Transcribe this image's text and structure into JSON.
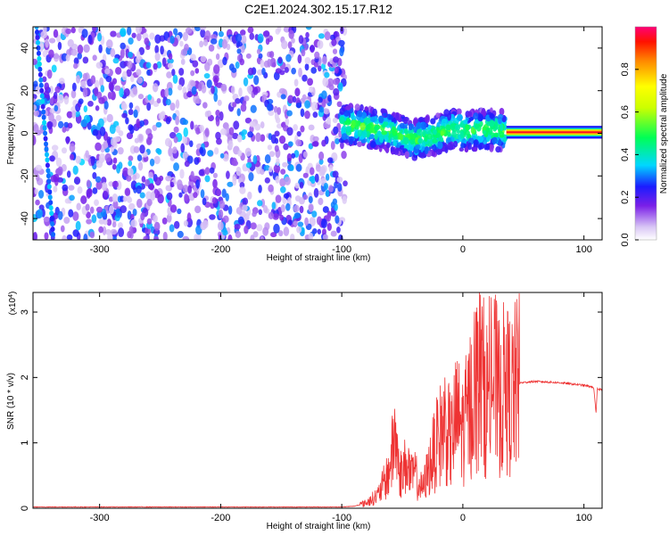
{
  "title": "C2E1.2024.302.15.17.R12",
  "chart_data": [
    {
      "type": "heatmap",
      "xlabel": "Height of straight line (km)",
      "ylabel": "Frequency (Hz)",
      "xlim": [
        -355,
        115
      ],
      "ylim": [
        -50,
        50
      ],
      "x_ticks": [
        -300,
        -200,
        -100,
        0,
        100
      ],
      "y_ticks": [
        -40,
        -20,
        0,
        20,
        40
      ],
      "colorbar": {
        "label": "Normalized spectral amplitude",
        "range": [
          0,
          1
        ],
        "ticks": [
          0.0,
          0.2,
          0.4,
          0.6,
          0.8
        ],
        "tick_labels": [
          "0.0",
          "0.2",
          "0.4",
          "0.6",
          "0.8"
        ]
      },
      "regions": [
        {
          "x_range": [
            -355,
            -97
          ],
          "description_values": {
            "freq_span": [
              -50,
              50
            ],
            "amplitude_typical": [
              0.05,
              0.3
            ]
          }
        },
        {
          "x_range": [
            -100,
            35
          ],
          "description_values": {
            "freq_span": [
              -10,
              12
            ],
            "amplitude_typical": [
              0.15,
              0.55
            ]
          }
        },
        {
          "x_range": [
            36,
            115
          ],
          "description_values": {
            "freq_center": 0.5,
            "amplitude_peak": 0.95
          }
        }
      ],
      "ridge": [
        {
          "x": -95,
          "y": 4
        },
        {
          "x": -80,
          "y": 3
        },
        {
          "x": -60,
          "y": 1
        },
        {
          "x": -40,
          "y": -3
        },
        {
          "x": -25,
          "y": -1
        },
        {
          "x": -10,
          "y": 2
        },
        {
          "x": 5,
          "y": 1
        },
        {
          "x": 20,
          "y": 2
        },
        {
          "x": 35,
          "y": 1
        }
      ]
    },
    {
      "type": "line",
      "xlabel": "Height of straight line (km)",
      "ylabel": "SNR (10 * v/v)",
      "y_multiplier": "(x10",
      "y_multiplier_exp": "4",
      "y_multiplier_close": ")",
      "xlim": [
        -355,
        115
      ],
      "ylim": [
        0,
        3.3
      ],
      "x_ticks": [
        -300,
        -200,
        -100,
        0,
        100
      ],
      "y_ticks": [
        0,
        1,
        2,
        3
      ],
      "color": "#ee3333",
      "series": [
        {
          "points": [
            [
              -355,
              0.02
            ],
            [
              -300,
              0.02
            ],
            [
              -200,
              0.02
            ],
            [
              -100,
              0.02
            ],
            [
              -90,
              0.03
            ],
            [
              -80,
              0.08
            ],
            [
              -70,
              0.2
            ],
            [
              -62,
              0.5
            ],
            [
              -58,
              0.85
            ],
            [
              -56,
              1.2
            ],
            [
              -53,
              0.6
            ],
            [
              -50,
              0.5
            ],
            [
              -46,
              0.75
            ],
            [
              -43,
              0.45
            ],
            [
              -40,
              0.55
            ],
            [
              -36,
              0.35
            ],
            [
              -33,
              0.3
            ],
            [
              -30,
              0.5
            ],
            [
              -25,
              0.8
            ],
            [
              -20,
              1.05
            ],
            [
              -15,
              1.3
            ],
            [
              -10,
              1.0
            ],
            [
              -5,
              1.4
            ],
            [
              0,
              1.2
            ],
            [
              5,
              1.5
            ],
            [
              10,
              1.9
            ],
            [
              15,
              2.0
            ],
            [
              20,
              1.7
            ],
            [
              25,
              2.0
            ],
            [
              30,
              1.7
            ],
            [
              35,
              1.85
            ],
            [
              40,
              1.7
            ],
            [
              45,
              1.9
            ],
            [
              48,
              1.92
            ],
            [
              60,
              1.94
            ],
            [
              80,
              1.92
            ],
            [
              100,
              1.88
            ],
            [
              108,
              1.85
            ],
            [
              110,
              1.45
            ],
            [
              111,
              1.82
            ],
            [
              115,
              1.82
            ]
          ]
        }
      ]
    }
  ]
}
